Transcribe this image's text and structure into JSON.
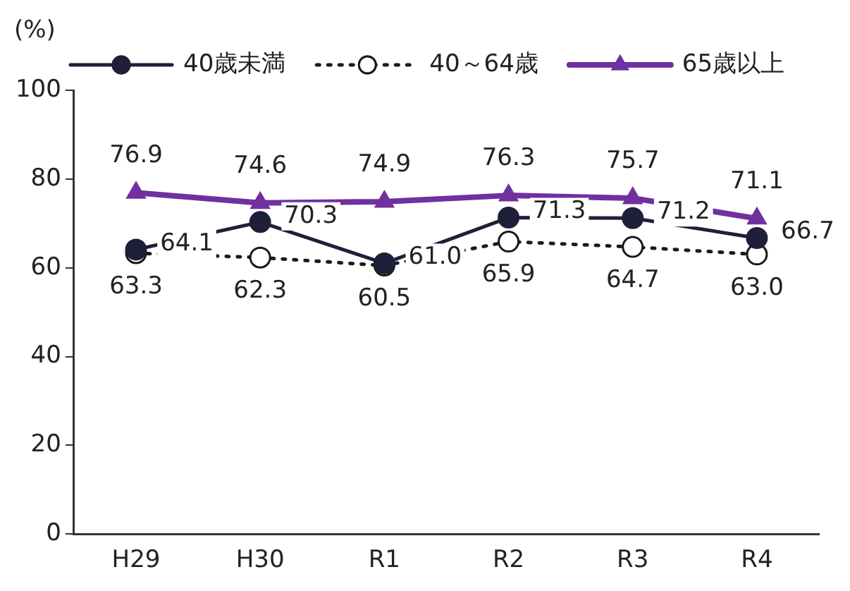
{
  "chart_data": {
    "type": "line",
    "ylabel": "(%)",
    "categories": [
      "H29",
      "H30",
      "R1",
      "R2",
      "R3",
      "R4"
    ],
    "series": [
      {
        "name": "40歳未満",
        "color": "#1f1f3a",
        "marker": "circle",
        "line_style": "solid",
        "values": [
          64.1,
          70.3,
          61.0,
          71.3,
          71.2,
          66.7
        ],
        "value_labels": [
          "64.1",
          "70.3",
          "61.0",
          "71.3",
          "71.2",
          "66.7"
        ]
      },
      {
        "name": "40～64歳",
        "color": "#1a1a1a",
        "marker": "circle",
        "line_style": "dotted",
        "values": [
          63.3,
          62.3,
          60.5,
          65.9,
          64.7,
          63.0
        ],
        "value_labels": [
          "63.3",
          "62.3",
          "60.5",
          "65.9",
          "64.7",
          "63.0"
        ]
      },
      {
        "name": "65歳以上",
        "color": "#7030a0",
        "marker": "triangle",
        "line_style": "solid",
        "values": [
          76.9,
          74.6,
          74.9,
          76.3,
          75.7,
          71.1
        ],
        "value_labels": [
          "76.9",
          "74.6",
          "74.9",
          "76.3",
          "75.7",
          "71.1"
        ]
      }
    ],
    "ylim": [
      0,
      100
    ],
    "yticks": [
      0,
      20,
      40,
      60,
      80,
      100
    ],
    "grid": false,
    "legend": "top"
  }
}
